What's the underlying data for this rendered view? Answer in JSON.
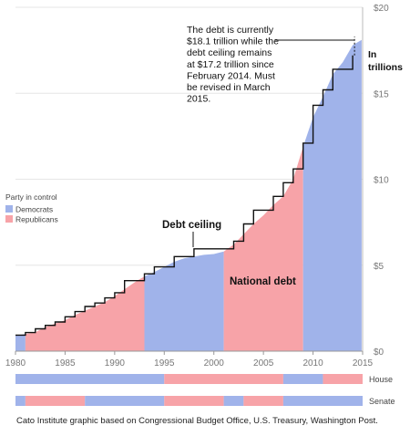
{
  "chart_data": {
    "type": "area",
    "title": "",
    "xlabel": "",
    "ylabel": "",
    "x_ticks": [
      "1980",
      "1985",
      "1990",
      "1995",
      "2000",
      "2005",
      "2010",
      "2015"
    ],
    "y_ticks": [
      "$0",
      "$5",
      "$10",
      "$15",
      "$20"
    ],
    "y_unit_label": "In trillions",
    "xlim": [
      1980,
      2015
    ],
    "ylim": [
      0,
      20
    ],
    "grid": true,
    "legend": {
      "title": "Party in control",
      "placement": "left",
      "entries": [
        {
          "name": "Democrats",
          "color": "#a0b3ea"
        },
        {
          "name": "Republicans",
          "color": "#f7a3a8"
        }
      ]
    },
    "series": [
      {
        "name": "National debt",
        "x": [
          1980,
          1981,
          1982,
          1983,
          1984,
          1985,
          1986,
          1987,
          1988,
          1989,
          1990,
          1991,
          1992,
          1993,
          1994,
          1995,
          1996,
          1997,
          1998,
          1999,
          2000,
          2001,
          2002,
          2003,
          2004,
          2005,
          2006,
          2007,
          2008,
          2009,
          2010,
          2011,
          2012,
          2013,
          2014,
          2014.9
        ],
        "y": [
          0.9,
          1.0,
          1.1,
          1.4,
          1.6,
          1.8,
          2.1,
          2.35,
          2.6,
          2.85,
          3.2,
          3.6,
          4.0,
          4.35,
          4.6,
          4.9,
          5.2,
          5.4,
          5.5,
          5.6,
          5.65,
          5.8,
          6.2,
          6.8,
          7.4,
          7.9,
          8.5,
          9.0,
          10.0,
          11.9,
          13.6,
          14.8,
          16.1,
          16.8,
          17.8,
          18.1
        ]
      },
      {
        "name": "Debt ceiling",
        "x": [
          1980,
          1981,
          1982,
          1983,
          1984,
          1985,
          1986,
          1987,
          1988,
          1989,
          1990,
          1991,
          1992,
          1993,
          1994,
          1995,
          1996,
          1997,
          1998,
          2000,
          2002,
          2003,
          2004,
          2005,
          2006,
          2007,
          2008,
          2009,
          2010,
          2011,
          2012,
          2013,
          2014
        ],
        "y": [
          0.93,
          1.08,
          1.3,
          1.5,
          1.7,
          2.0,
          2.3,
          2.6,
          2.8,
          3.1,
          3.4,
          4.1,
          4.1,
          4.5,
          4.9,
          4.9,
          5.5,
          5.5,
          5.95,
          5.95,
          6.4,
          7.4,
          8.2,
          8.2,
          9.0,
          9.8,
          10.6,
          12.1,
          14.3,
          15.2,
          16.4,
          16.4,
          17.2
        ]
      }
    ],
    "shaded_periods": [
      {
        "from": 1980,
        "to": 1981,
        "party": "Democrats"
      },
      {
        "from": 1981,
        "to": 1993,
        "party": "Republicans"
      },
      {
        "from": 1993,
        "to": 2001,
        "party": "Democrats"
      },
      {
        "from": 2001,
        "to": 2009,
        "party": "Republicans"
      },
      {
        "from": 2009,
        "to": 2015,
        "party": "Democrats"
      }
    ],
    "area_labels": [
      "National debt"
    ],
    "line_labels": [
      "Debt ceiling"
    ],
    "annotation": {
      "text_lines": [
        "The debt is currently",
        "$18.1 trillion while the",
        "debt ceiling remains",
        "at $17.2 trillion since",
        "February 2014. Must",
        "be revised in March",
        "2015."
      ],
      "x": 2014
    },
    "control_bars": [
      {
        "label": "House",
        "segments": [
          {
            "from": 1980,
            "to": 1995,
            "party": "Democrats"
          },
          {
            "from": 1995,
            "to": 2007,
            "party": "Republicans"
          },
          {
            "from": 2007,
            "to": 2011,
            "party": "Democrats"
          },
          {
            "from": 2011,
            "to": 2015,
            "party": "Republicans"
          }
        ]
      },
      {
        "label": "Senate",
        "segments": [
          {
            "from": 1980,
            "to": 1981,
            "party": "Democrats"
          },
          {
            "from": 1981,
            "to": 1987,
            "party": "Republicans"
          },
          {
            "from": 1987,
            "to": 1995,
            "party": "Democrats"
          },
          {
            "from": 1995,
            "to": 2001,
            "party": "Republicans"
          },
          {
            "from": 2001,
            "to": 2003,
            "party": "Democrats"
          },
          {
            "from": 2003,
            "to": 2007,
            "party": "Republicans"
          },
          {
            "from": 2007,
            "to": 2015,
            "party": "Democrats"
          }
        ]
      }
    ]
  },
  "source": "Cato Institute graphic based on Congressional Budget Office, U.S. Treasury, Washington Post."
}
